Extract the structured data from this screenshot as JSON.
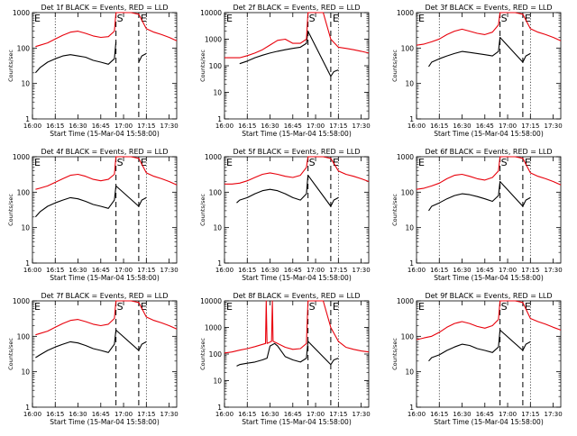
{
  "figure": {
    "xlabel": "Start Time (15-Mar-04 15:58:00)",
    "ylabel": "Counts/sec",
    "x_ticks": [
      "16:00",
      "16:15",
      "16:30",
      "16:45",
      "17:00",
      "17:15",
      "17:30"
    ],
    "y_ticks": [
      "1",
      "10",
      "100",
      "1000"
    ],
    "y_ticks_det2": [
      "1",
      "10",
      "100",
      "1000",
      "10000"
    ],
    "x_minutes": [
      0,
      15,
      30,
      45,
      60,
      75,
      90
    ],
    "colors": {
      "events": "#000000",
      "lld": "#e8000b",
      "axes": "#000000"
    },
    "markers": {
      "start_label": "S",
      "end_label": "E",
      "start_minute": 55,
      "end_minute": 70
    }
  },
  "chart_data": [
    {
      "type": "line",
      "title": "Det 1f BLACK = Events, RED = LLD",
      "xlabel": "Start Time (15-Mar-04 15:58:00)",
      "ylabel": "Counts/sec",
      "xlim": [
        0,
        95
      ],
      "ylim": [
        1,
        1000
      ],
      "yscale": "log",
      "series": [
        {
          "name": "Events",
          "color": "#000000",
          "x": [
            2,
            5,
            10,
            15,
            20,
            25,
            30,
            35,
            40,
            45,
            50,
            54,
            55,
            58,
            65,
            69,
            70,
            72,
            75
          ],
          "y": [
            20,
            28,
            40,
            50,
            60,
            65,
            60,
            55,
            45,
            40,
            35,
            50,
            150,
            null,
            null,
            null,
            40,
            60,
            70
          ]
        },
        {
          "name": "LLD",
          "color": "#e8000b",
          "x": [
            2,
            5,
            10,
            15,
            20,
            25,
            30,
            35,
            40,
            45,
            50,
            54,
            55,
            58,
            65,
            70,
            75,
            80,
            85,
            90,
            95
          ],
          "y": [
            110,
            120,
            140,
            180,
            230,
            280,
            300,
            260,
            220,
            200,
            210,
            300,
            1000,
            1000,
            1000,
            900,
            350,
            280,
            240,
            200,
            160
          ]
        }
      ]
    },
    {
      "type": "line",
      "title": "Det 2f BLACK = Events, RED = LLD",
      "xlabel": "Start Time (15-Mar-04 15:58:00)",
      "ylabel": "Counts/sec",
      "xlim": [
        0,
        95
      ],
      "ylim": [
        1,
        10000
      ],
      "yscale": "log",
      "series": [
        {
          "name": "Events",
          "color": "#000000",
          "x": [
            10,
            15,
            20,
            25,
            30,
            35,
            40,
            45,
            50,
            54,
            55,
            70,
            72,
            75
          ],
          "y": [
            120,
            150,
            200,
            250,
            300,
            350,
            400,
            450,
            500,
            700,
            2000,
            40,
            60,
            70
          ]
        },
        {
          "name": "LLD",
          "color": "#e8000b",
          "x": [
            0,
            5,
            10,
            15,
            20,
            25,
            30,
            35,
            40,
            45,
            50,
            54,
            55,
            58,
            65,
            70,
            75,
            80,
            85,
            90,
            95
          ],
          "y": [
            200,
            200,
            200,
            240,
            300,
            400,
            600,
            900,
            1000,
            700,
            700,
            1000,
            10000,
            10000,
            10000,
            1000,
            500,
            450,
            400,
            350,
            300
          ]
        }
      ]
    },
    {
      "type": "line",
      "title": "Det 3f BLACK = Events, RED = LLD",
      "xlabel": "Start Time (15-Mar-04 15:58:00)",
      "ylabel": "Counts/sec",
      "xlim": [
        0,
        95
      ],
      "ylim": [
        1,
        1000
      ],
      "yscale": "log",
      "series": [
        {
          "name": "Events",
          "color": "#000000",
          "x": [
            8,
            10,
            15,
            20,
            25,
            30,
            35,
            40,
            45,
            50,
            54,
            55,
            70,
            72,
            75
          ],
          "y": [
            30,
            40,
            50,
            60,
            70,
            80,
            75,
            70,
            65,
            60,
            80,
            200,
            40,
            60,
            70
          ]
        },
        {
          "name": "LLD",
          "color": "#e8000b",
          "x": [
            0,
            5,
            10,
            15,
            20,
            25,
            30,
            35,
            40,
            45,
            50,
            54,
            55,
            58,
            65,
            70,
            75,
            80,
            85,
            90,
            95
          ],
          "y": [
            120,
            130,
            150,
            180,
            240,
            300,
            340,
            300,
            260,
            240,
            280,
            450,
            1000,
            1000,
            1000,
            900,
            350,
            280,
            240,
            200,
            160
          ]
        }
      ]
    },
    {
      "type": "line",
      "title": "Det 4f BLACK = Events, RED = LLD",
      "xlabel": "Start Time (15-Mar-04 15:58:00)",
      "ylabel": "Counts/sec",
      "xlim": [
        0,
        95
      ],
      "ylim": [
        1,
        1000
      ],
      "yscale": "log",
      "series": [
        {
          "name": "Events",
          "color": "#000000",
          "x": [
            2,
            5,
            10,
            15,
            20,
            25,
            30,
            35,
            40,
            45,
            50,
            54,
            55,
            70,
            72,
            75
          ],
          "y": [
            20,
            28,
            40,
            50,
            60,
            70,
            65,
            55,
            45,
            40,
            35,
            60,
            150,
            40,
            60,
            70
          ]
        },
        {
          "name": "LLD",
          "color": "#e8000b",
          "x": [
            2,
            5,
            10,
            15,
            20,
            25,
            30,
            35,
            40,
            45,
            50,
            54,
            55,
            58,
            65,
            70,
            75,
            80,
            85,
            90,
            95
          ],
          "y": [
            120,
            130,
            150,
            190,
            240,
            300,
            320,
            280,
            230,
            210,
            230,
            320,
            1000,
            1000,
            1000,
            900,
            350,
            280,
            240,
            200,
            160
          ]
        }
      ]
    },
    {
      "type": "line",
      "title": "Det 5f BLACK = Events, RED = LLD",
      "xlabel": "Start Time (15-Mar-04 15:58:00)",
      "ylabel": "Counts/sec",
      "xlim": [
        0,
        95
      ],
      "ylim": [
        1,
        1000
      ],
      "yscale": "log",
      "series": [
        {
          "name": "Events",
          "color": "#000000",
          "x": [
            8,
            10,
            15,
            20,
            25,
            30,
            35,
            40,
            45,
            50,
            54,
            55,
            70,
            72,
            75
          ],
          "y": [
            50,
            60,
            70,
            90,
            110,
            120,
            110,
            90,
            70,
            60,
            90,
            300,
            40,
            60,
            70
          ]
        },
        {
          "name": "LLD",
          "color": "#e8000b",
          "x": [
            0,
            5,
            10,
            15,
            20,
            25,
            30,
            35,
            40,
            45,
            50,
            54,
            55,
            58,
            65,
            70,
            75,
            80,
            85,
            90,
            95
          ],
          "y": [
            170,
            170,
            180,
            210,
            260,
            320,
            350,
            320,
            280,
            260,
            300,
            500,
            1000,
            1000,
            1000,
            900,
            400,
            320,
            280,
            240,
            200
          ]
        }
      ]
    },
    {
      "type": "line",
      "title": "Det 6f BLACK = Events, RED = LLD",
      "xlabel": "Start Time (15-Mar-04 15:58:00)",
      "ylabel": "Counts/sec",
      "xlim": [
        0,
        95
      ],
      "ylim": [
        1,
        1000
      ],
      "yscale": "log",
      "series": [
        {
          "name": "Events",
          "color": "#000000",
          "x": [
            8,
            10,
            15,
            20,
            25,
            30,
            35,
            40,
            45,
            50,
            54,
            55,
            70,
            72,
            75
          ],
          "y": [
            30,
            40,
            50,
            65,
            80,
            90,
            85,
            75,
            65,
            55,
            80,
            200,
            40,
            60,
            70
          ]
        },
        {
          "name": "LLD",
          "color": "#e8000b",
          "x": [
            0,
            5,
            10,
            15,
            20,
            25,
            30,
            35,
            40,
            45,
            50,
            54,
            55,
            58,
            65,
            70,
            75,
            80,
            85,
            90,
            95
          ],
          "y": [
            120,
            130,
            150,
            180,
            240,
            300,
            320,
            280,
            240,
            220,
            260,
            400,
            1000,
            1000,
            1000,
            900,
            350,
            280,
            240,
            200,
            160
          ]
        }
      ]
    },
    {
      "type": "line",
      "title": "Det 7f BLACK = Events, RED = LLD",
      "xlabel": "Start Time (15-Mar-04 15:58:00)",
      "ylabel": "Counts/sec",
      "xlim": [
        0,
        95
      ],
      "ylim": [
        1,
        1000
      ],
      "yscale": "log",
      "series": [
        {
          "name": "Events",
          "color": "#000000",
          "x": [
            2,
            5,
            10,
            15,
            20,
            25,
            30,
            35,
            40,
            45,
            50,
            54,
            55,
            70,
            72,
            75
          ],
          "y": [
            25,
            30,
            40,
            50,
            60,
            70,
            65,
            55,
            45,
            40,
            35,
            60,
            150,
            40,
            60,
            70
          ]
        },
        {
          "name": "LLD",
          "color": "#e8000b",
          "x": [
            2,
            5,
            10,
            15,
            20,
            25,
            30,
            35,
            40,
            45,
            50,
            54,
            55,
            58,
            65,
            70,
            75,
            80,
            85,
            90,
            95
          ],
          "y": [
            110,
            120,
            140,
            180,
            230,
            280,
            300,
            260,
            220,
            200,
            220,
            320,
            1000,
            1000,
            1000,
            900,
            350,
            280,
            240,
            200,
            160
          ]
        }
      ]
    },
    {
      "type": "line",
      "title": "Det 8f BLACK = Events, RED = LLD",
      "xlabel": "Start Time (15-Mar-04 15:58:00)",
      "ylabel": "Counts/sec",
      "xlim": [
        0,
        95
      ],
      "ylim": [
        1,
        10000
      ],
      "yscale": "log",
      "series": [
        {
          "name": "Events",
          "color": "#000000",
          "x": [
            8,
            10,
            15,
            20,
            25,
            28,
            30,
            33,
            35,
            40,
            45,
            50,
            54,
            55,
            70,
            72,
            75
          ],
          "y": [
            35,
            40,
            45,
            50,
            60,
            70,
            200,
            250,
            200,
            80,
            60,
            50,
            70,
            300,
            40,
            60,
            70
          ]
        },
        {
          "name": "LLD",
          "color": "#e8000b",
          "x": [
            0,
            5,
            10,
            15,
            20,
            25,
            27,
            27.5,
            28,
            30,
            31,
            31.5,
            32,
            35,
            40,
            45,
            50,
            54,
            55,
            58,
            65,
            70,
            75,
            80,
            85,
            90,
            95
          ],
          "y": [
            110,
            120,
            140,
            160,
            190,
            230,
            250,
            10000,
            250,
            280,
            300,
            10000,
            300,
            250,
            180,
            150,
            160,
            250,
            10000,
            10000,
            10000,
            1000,
            300,
            180,
            150,
            130,
            120
          ]
        }
      ]
    },
    {
      "type": "line",
      "title": "Det 9f BLACK = Events, RED = LLD",
      "xlabel": "Start Time (15-Mar-04 15:58:00)",
      "ylabel": "Counts/sec",
      "xlim": [
        0,
        95
      ],
      "ylim": [
        1,
        1000
      ],
      "yscale": "log",
      "series": [
        {
          "name": "Events",
          "color": "#000000",
          "x": [
            8,
            10,
            15,
            20,
            25,
            30,
            35,
            40,
            45,
            50,
            54,
            55,
            70,
            72,
            75
          ],
          "y": [
            20,
            25,
            30,
            40,
            50,
            60,
            55,
            45,
            40,
            35,
            50,
            150,
            40,
            60,
            70
          ]
        },
        {
          "name": "LLD",
          "color": "#e8000b",
          "x": [
            0,
            5,
            10,
            15,
            20,
            25,
            30,
            35,
            40,
            45,
            50,
            54,
            55,
            58,
            65,
            70,
            75,
            80,
            85,
            90,
            95
          ],
          "y": [
            80,
            90,
            100,
            130,
            180,
            230,
            260,
            230,
            190,
            170,
            200,
            300,
            1000,
            1000,
            1000,
            900,
            320,
            260,
            220,
            180,
            150
          ]
        }
      ]
    }
  ]
}
